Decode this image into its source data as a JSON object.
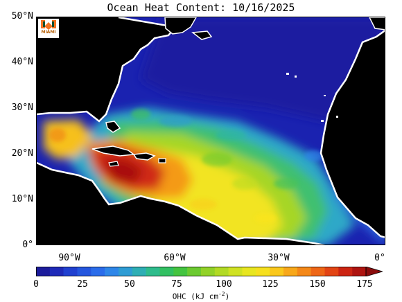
{
  "title": "Ocean Heat Content: 10/16/2025",
  "logo": {
    "text": "MIAMI",
    "orange": "#f47321",
    "green": "#005030"
  },
  "map": {
    "lat_labels": [
      "50°N",
      "40°N",
      "30°N",
      "20°N",
      "10°N",
      "0°"
    ],
    "lon_labels": [
      "90°W",
      "60°W",
      "30°W",
      "0°"
    ],
    "land_color": "#000000",
    "coast_color": "#ffffff"
  },
  "colorbar": {
    "ticks": [
      "0",
      "25",
      "50",
      "75",
      "100",
      "125",
      "150",
      "175"
    ],
    "label": "OHC (kJ cm",
    "label_exp": "-2",
    "label_end": ")",
    "colors": [
      "#1c1c9c",
      "#1e2ab8",
      "#2040d0",
      "#2456de",
      "#2a6cea",
      "#2e86e8",
      "#2e9cd4",
      "#2eaeb4",
      "#2ebc8c",
      "#32c062",
      "#44c440",
      "#6cca30",
      "#92d228",
      "#b2da24",
      "#d0e222",
      "#e8e620",
      "#f6e01e",
      "#fac81c",
      "#f8a81a",
      "#f48818",
      "#ee6616",
      "#e24414",
      "#cc2412",
      "#ae1410",
      "#8a0c0c"
    ]
  }
}
